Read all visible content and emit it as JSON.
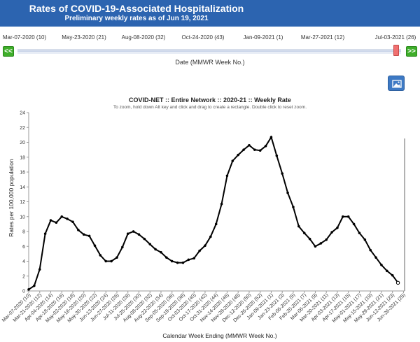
{
  "header": {
    "title": "Rates of COVID-19-Associated Hospitalization",
    "subtitle": "Preliminary weekly rates as of Jun 19, 2021"
  },
  "slider": {
    "labels": [
      "Mar-07-2020 (10)",
      "May-23-2020 (21)",
      "Aug-08-2020 (32)",
      "Oct-24-2020 (43)",
      "Jan-09-2021 (1)",
      "Mar-27-2021 (12)",
      "Jul-03-2021 (26)"
    ],
    "prev_label": "<<",
    "next_label": ">>",
    "axis_label": "Date (MMWR Week No.)"
  },
  "image_button_icon": "image-icon",
  "chart_data": {
    "type": "line",
    "title": "COVID-NET :: Entire Network :: 2020-21 :: Weekly Rate",
    "subtitle": "To zoom, hold down Alt key and click and drag to create a rectangle. Double click to reset zoom.",
    "xlabel": "Calendar Week Ending (MMWR Week No.)",
    "ylabel": "Rates per 100,000 population",
    "ylim": [
      0,
      24
    ],
    "yticks": [
      0,
      2,
      4,
      6,
      8,
      10,
      12,
      14,
      16,
      18,
      20,
      22,
      24
    ],
    "xtick_labels": [
      "Mar-07-2020 (10)",
      "Mar-21-2020 (12)",
      "Apr-04-2020 (14)",
      "Apr-18-2020 (16)",
      "May-02-2020 (18)",
      "May-16-2020 (20)",
      "May-30-2020 (22)",
      "Jun-13-2020 (24)",
      "Jun-27-2020 (26)",
      "Jul-11-2020 (28)",
      "Jul-25-2020 (30)",
      "Aug-08-2020 (32)",
      "Aug-22-2020 (34)",
      "Sep-05-2020 (36)",
      "Sep-19-2020 (38)",
      "Oct-03-2020 (40)",
      "Oct-17-2020 (42)",
      "Oct-31-2020 (44)",
      "Nov-14-2020 (46)",
      "Nov-28-2020 (48)",
      "Dec-12-2020 (50)",
      "Dec-26-2020 (52)",
      "Jan-09-2021 (1)",
      "Jan-23-2021 (3)",
      "Feb-06-2021 (5)",
      "Feb-20-2021 (7)",
      "Mar-06-2021 (9)",
      "Mar-20-2021 (11)",
      "Apr-03-2021 (13)",
      "Apr-17-2021 (15)",
      "May-01-2021 (17)",
      "May-15-2021 (19)",
      "May-29-2021 (21)",
      "Jun-12-2021 (23)",
      "Jun-26-2021 (25)"
    ],
    "series": [
      {
        "values": [
          0.2,
          0.7,
          2.9,
          7.7,
          9.5,
          9.2,
          10.0,
          9.7,
          9.3,
          8.2,
          7.6,
          7.4,
          6.1,
          4.8,
          4.0,
          4.0,
          4.5,
          5.9,
          7.7,
          8.0,
          7.6,
          7.0,
          6.3,
          5.6,
          5.2,
          4.5,
          4.0,
          3.8,
          3.8,
          4.2,
          4.4,
          5.4,
          6.1,
          7.3,
          9.0,
          11.7,
          15.5,
          17.5,
          18.3,
          19.0,
          19.6,
          19.0,
          18.9,
          19.5,
          20.7,
          18.2,
          15.8,
          13.2,
          11.3,
          8.7,
          7.8,
          7.0,
          6.0,
          6.4,
          6.9,
          7.9,
          8.5,
          10.0,
          10.0,
          9.0,
          7.8,
          6.9,
          5.5,
          4.5,
          3.5,
          2.7,
          2.1,
          1.1
        ]
      }
    ],
    "grid": false
  }
}
